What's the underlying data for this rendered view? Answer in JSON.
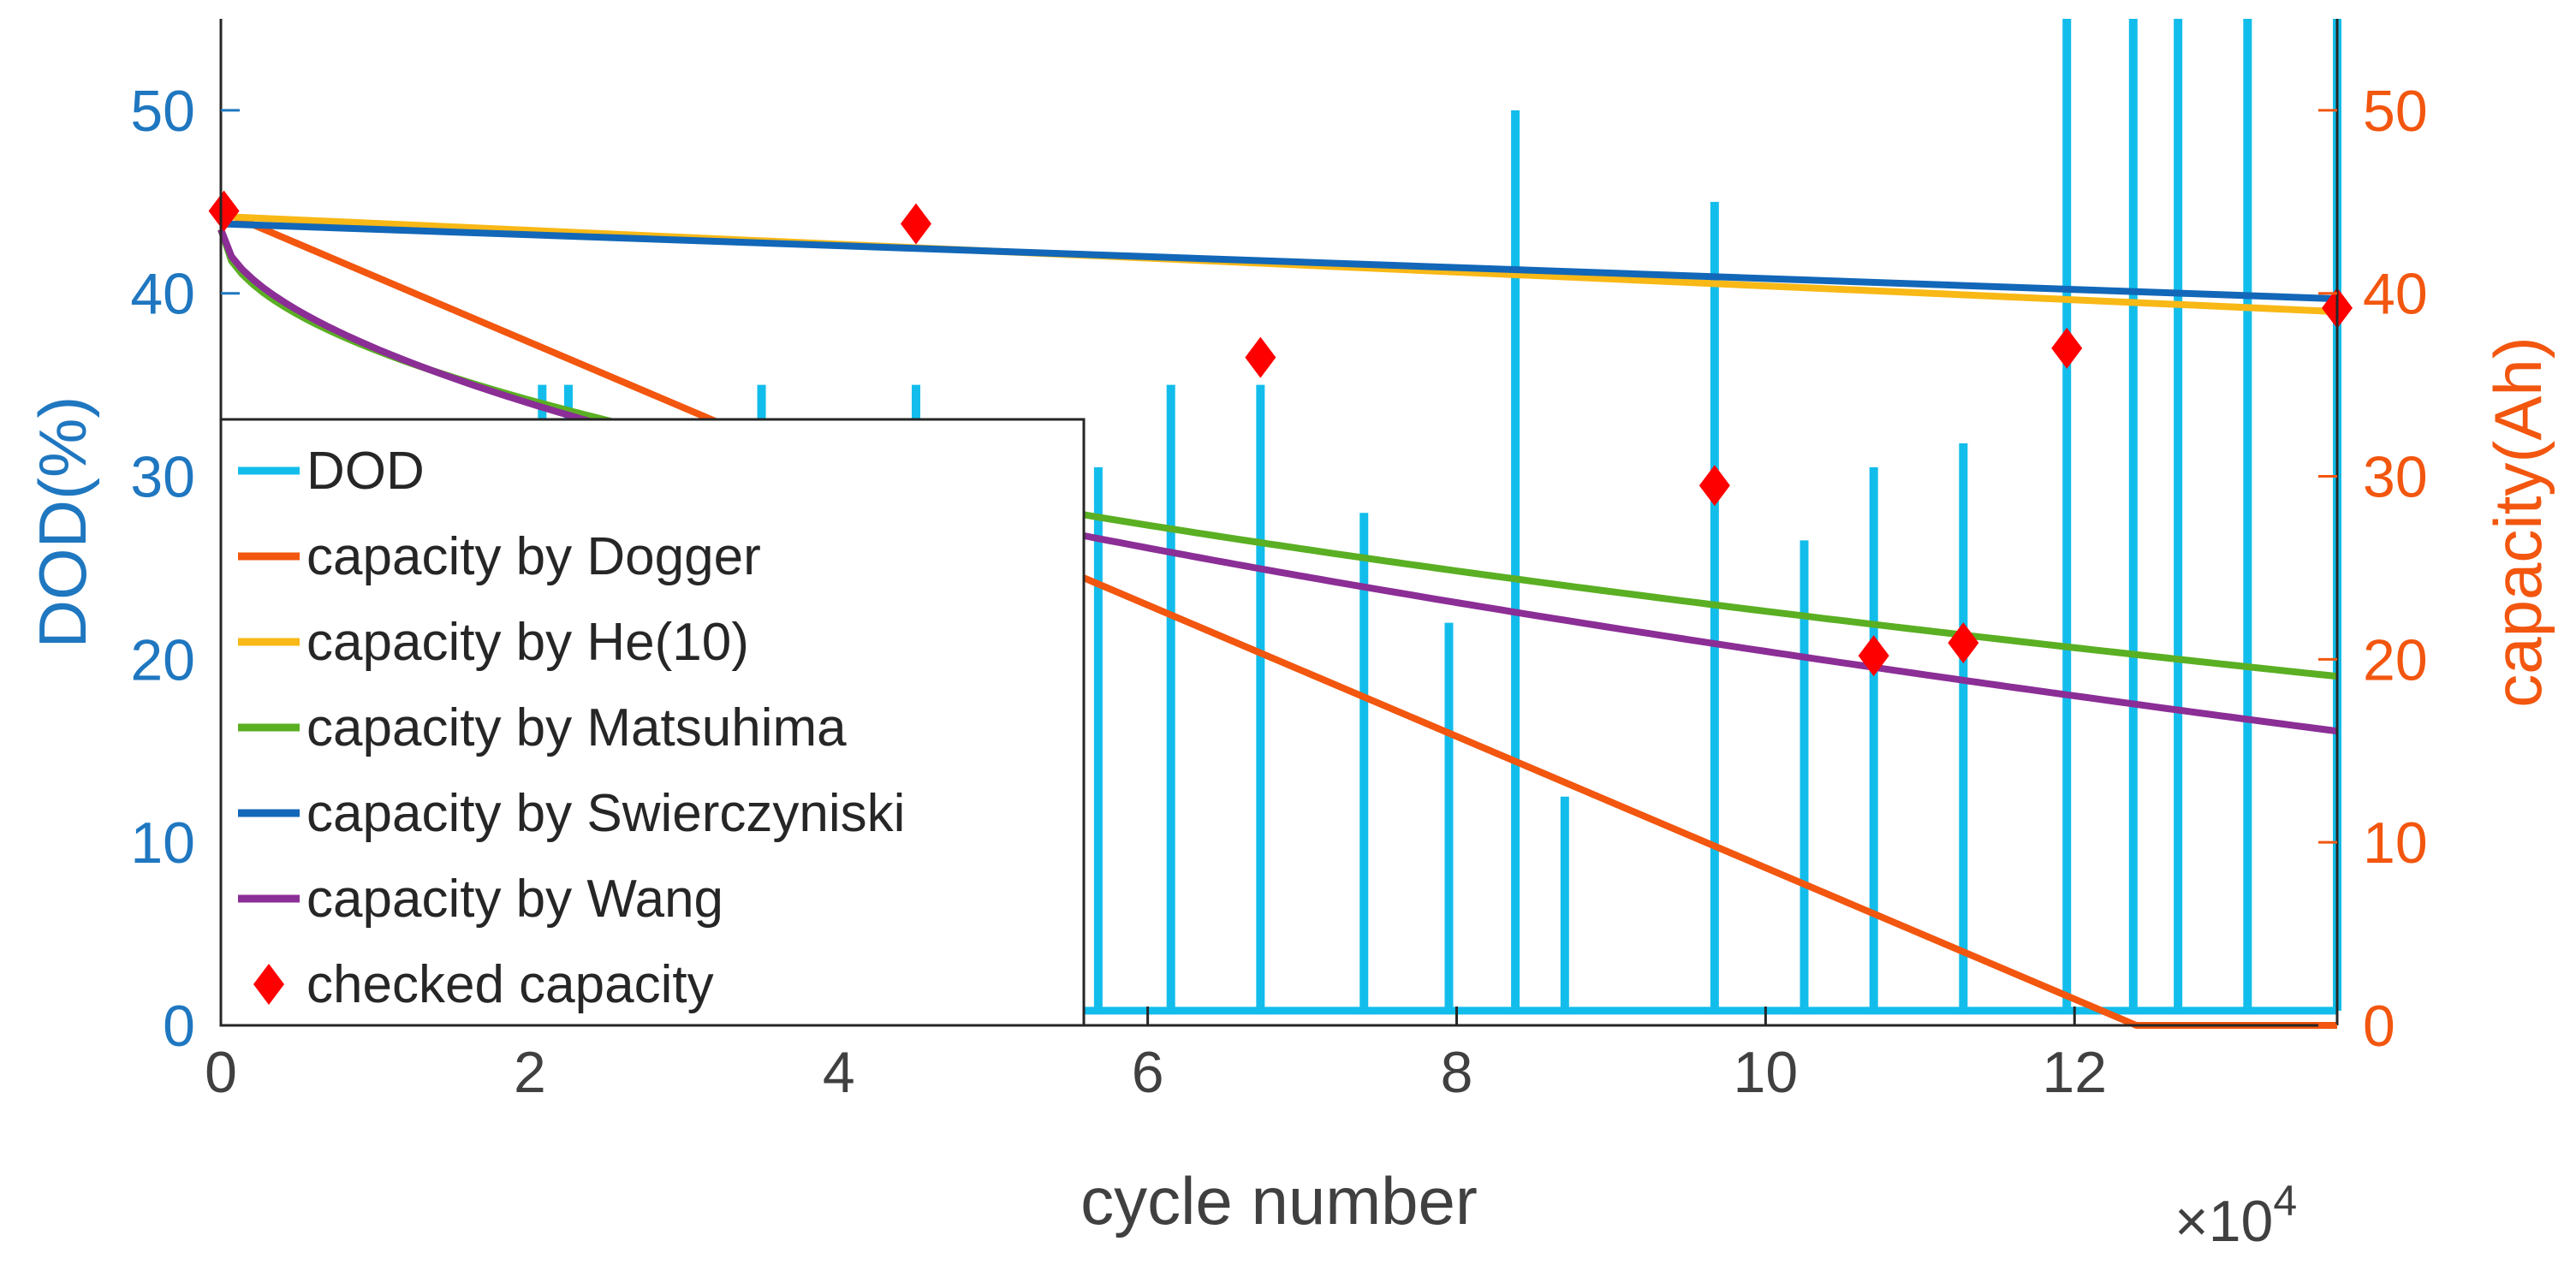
{
  "chart_data": {
    "type": "line",
    "xlabel": "cycle number",
    "x_multiplier": "×10",
    "x_multiplier_exp": "4",
    "xlim": [
      0,
      13.7
    ],
    "x_ticks": [
      "0",
      "2",
      "4",
      "6",
      "8",
      "10",
      "12"
    ],
    "y_left": {
      "label": "DOD(%)",
      "ylim": [
        0,
        55
      ],
      "ticks": [
        "0",
        "10",
        "20",
        "30",
        "40",
        "50"
      ],
      "color": "#1F77C0"
    },
    "y_right": {
      "label": "capacity(Ah)",
      "ylim": [
        0,
        55
      ],
      "ticks": [
        "0",
        "10",
        "20",
        "30",
        "40",
        "50"
      ],
      "color": "#F2560F"
    },
    "dod": {
      "name": "DOD",
      "color": "#12BDEB",
      "baseline": 0.8,
      "spikes": [
        {
          "x": 2.08,
          "y": 35
        },
        {
          "x": 2.25,
          "y": 35
        },
        {
          "x": 3.5,
          "y": 35
        },
        {
          "x": 4.5,
          "y": 35
        },
        {
          "x": 5.68,
          "y": 30.5
        },
        {
          "x": 6.15,
          "y": 35
        },
        {
          "x": 6.73,
          "y": 35
        },
        {
          "x": 7.4,
          "y": 28
        },
        {
          "x": 7.95,
          "y": 22
        },
        {
          "x": 8.38,
          "y": 50
        },
        {
          "x": 8.7,
          "y": 12.5
        },
        {
          "x": 9.67,
          "y": 45
        },
        {
          "x": 10.25,
          "y": 26.5
        },
        {
          "x": 10.7,
          "y": 30.5
        },
        {
          "x": 11.28,
          "y": 31.8
        },
        {
          "x": 11.95,
          "y": 55
        },
        {
          "x": 12.38,
          "y": 55
        },
        {
          "x": 12.67,
          "y": 55
        },
        {
          "x": 13.12,
          "y": 55
        },
        {
          "x": 13.7,
          "y": 55
        }
      ]
    },
    "series": [
      {
        "name": "capacity by Dogger",
        "color": "#F2560F",
        "x": [
          0,
          12.4,
          13.7
        ],
        "values": [
          44.5,
          0,
          0
        ]
      },
      {
        "name": "capacity by He(10)",
        "color": "#F8B816",
        "x": [
          0,
          13.7
        ],
        "values": [
          44.2,
          39.0
        ]
      },
      {
        "name": "capacity by Matsuhima",
        "color": "#5AAF23",
        "model": "power",
        "x0": 0,
        "y0": 43.5,
        "k": 6.6,
        "p": 0.5,
        "x_end": 13.7
      },
      {
        "name": "capacity by Swierczyniski",
        "color": "#1267B8",
        "x": [
          0,
          13.7
        ],
        "values": [
          43.8,
          39.7
        ]
      },
      {
        "name": "capacity by Wang",
        "color": "#8B2E96",
        "model": "power",
        "x0": 0,
        "y0": 43.5,
        "k": 6.5,
        "p": 0.55,
        "x_end": 13.7
      }
    ],
    "checked_capacity": {
      "name": "checked capacity",
      "color": "#FF0000",
      "points": [
        {
          "x": 0.02,
          "y": 44.5
        },
        {
          "x": 4.5,
          "y": 43.8
        },
        {
          "x": 6.73,
          "y": 36.5
        },
        {
          "x": 9.67,
          "y": 29.5
        },
        {
          "x": 10.7,
          "y": 20.2
        },
        {
          "x": 11.28,
          "y": 20.9
        },
        {
          "x": 11.95,
          "y": 37.0
        },
        {
          "x": 13.7,
          "y": 39.2
        }
      ]
    }
  }
}
